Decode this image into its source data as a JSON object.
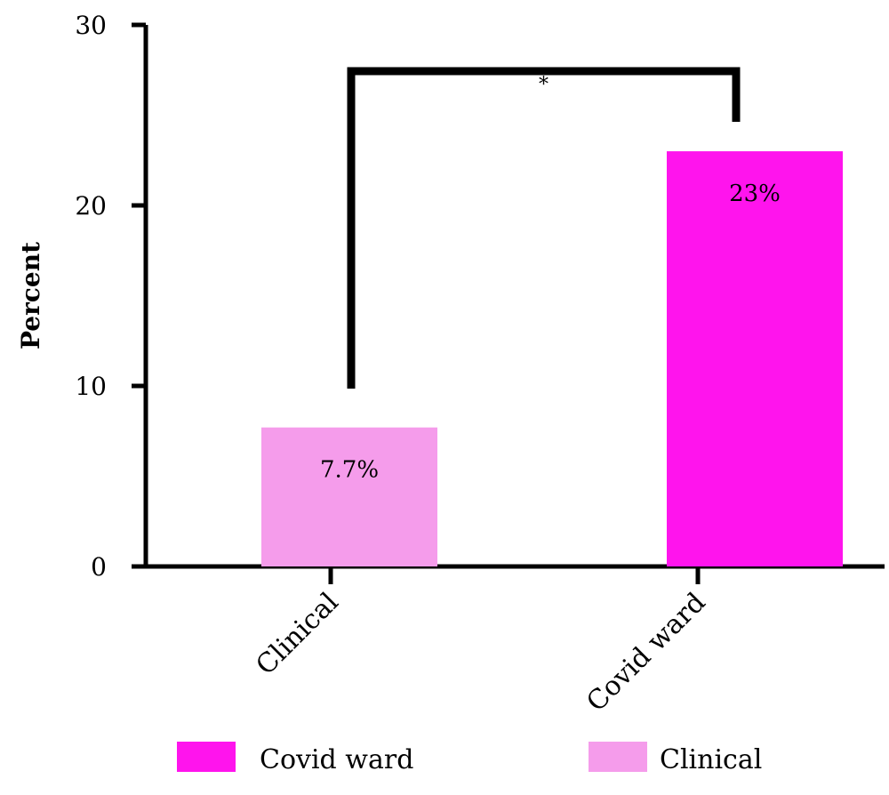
{
  "chart_data": {
    "type": "bar",
    "ylabel": "Percent",
    "xlabel": "",
    "ylim": [
      0,
      30
    ],
    "yticks": [
      0,
      10,
      20,
      30
    ],
    "grid": false,
    "categories": [
      "Clinical",
      "Covid ward"
    ],
    "values": [
      7.7,
      23
    ],
    "data_labels": [
      "7.7%",
      "23%"
    ],
    "colors": [
      "#f59ceb",
      "#ff14ed"
    ],
    "significance": {
      "from": "Clinical",
      "to": "Covid ward",
      "label": "*"
    },
    "legend": {
      "placement": "bottom",
      "entries": [
        {
          "name": "Covid ward",
          "color": "#ff14ed"
        },
        {
          "name": "Clinical",
          "color": "#f59ceb"
        }
      ]
    }
  }
}
